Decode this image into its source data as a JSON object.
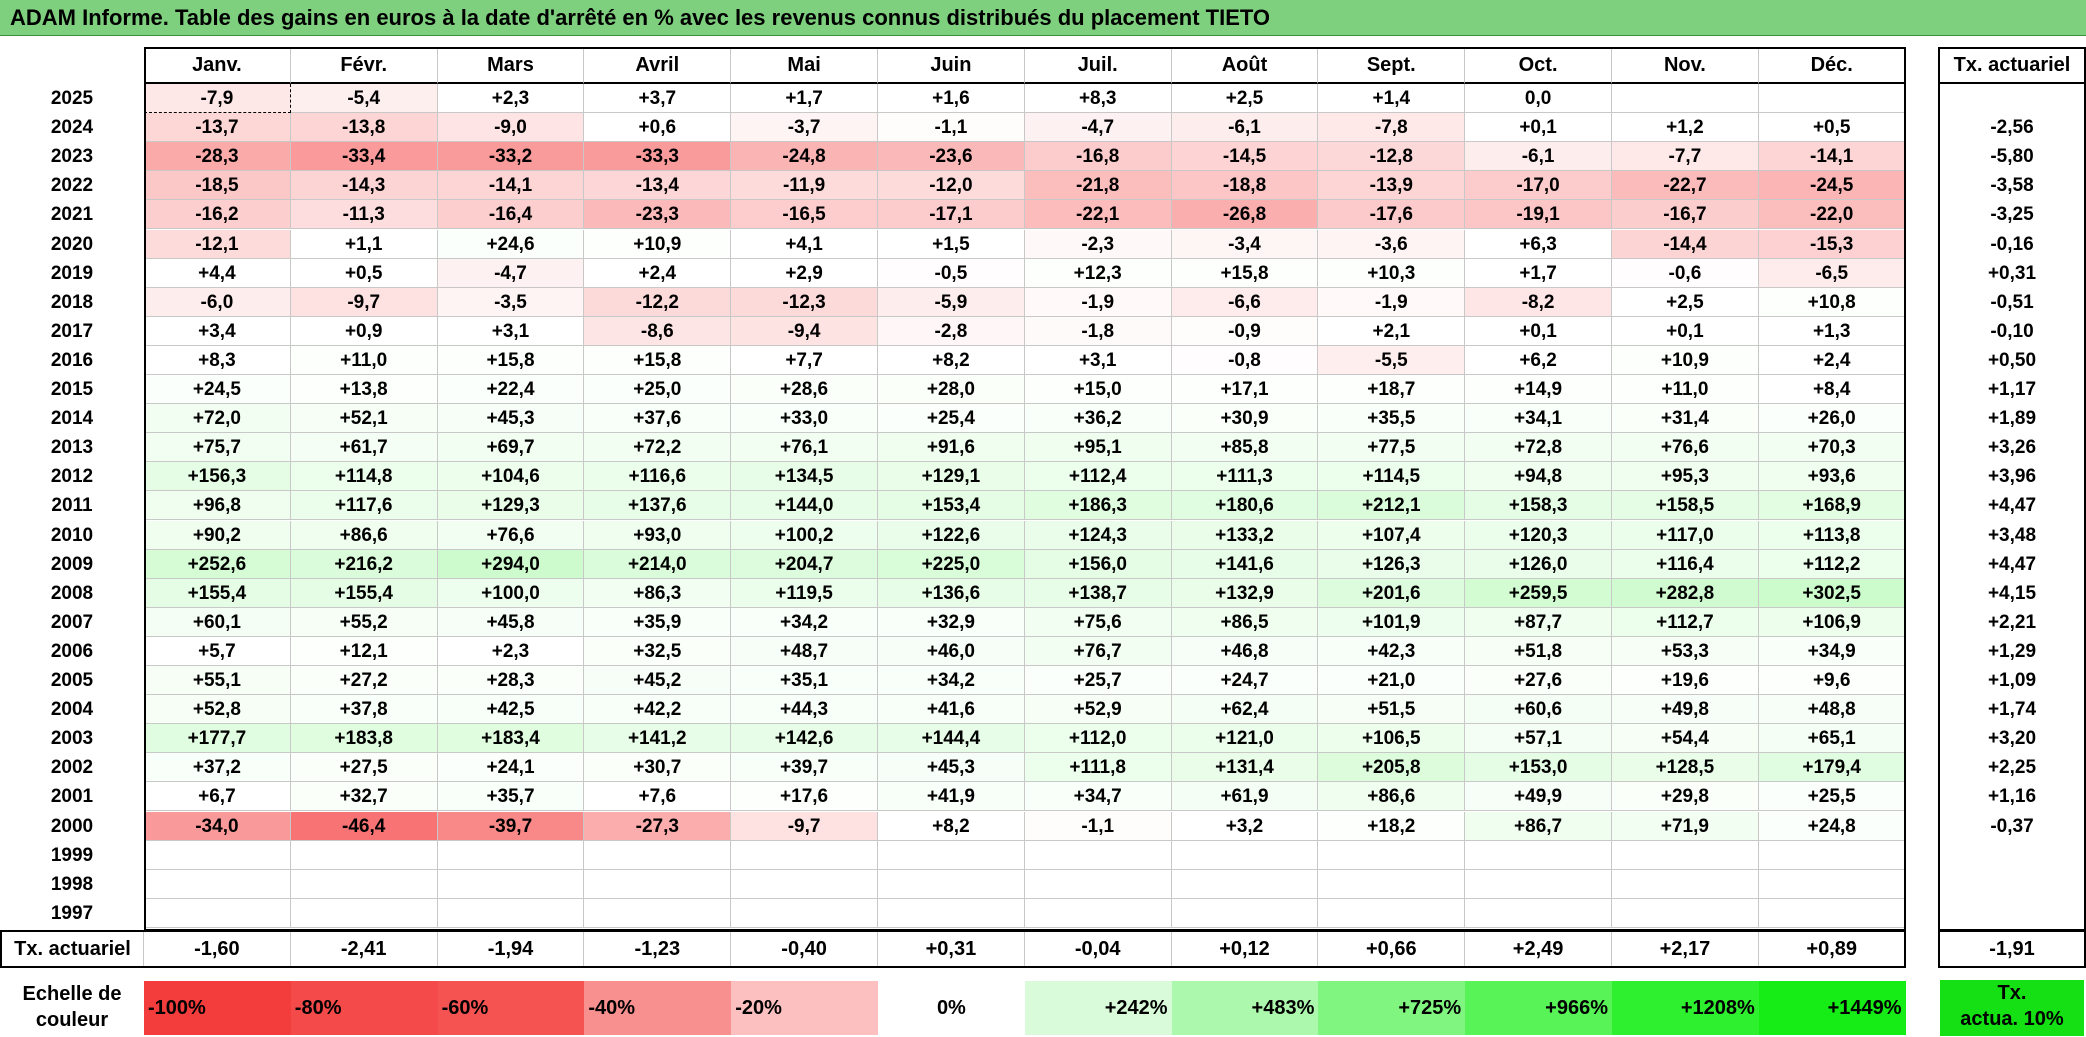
{
  "title": "ADAM Informe. Table des gains en euros à la date d'arrêté en % avec les revenus connus distribués du placement TIETO",
  "months": [
    "Janv.",
    "Févr.",
    "Mars",
    "Avril",
    "Mai",
    "Juin",
    "Juil.",
    "Août",
    "Sept.",
    "Oct.",
    "Nov.",
    "Déc."
  ],
  "tx_header": "Tx. actuariel",
  "rows": [
    {
      "year": "2025",
      "values": [
        "-7,9",
        "-5,4",
        "+2,3",
        "+3,7",
        "+1,7",
        "+1,6",
        "+8,3",
        "+2,5",
        "+1,4",
        "0,0",
        "",
        ""
      ],
      "tx": ""
    },
    {
      "year": "2024",
      "values": [
        "-13,7",
        "-13,8",
        "-9,0",
        "+0,6",
        "-3,7",
        "-1,1",
        "-4,7",
        "-6,1",
        "-7,8",
        "+0,1",
        "+1,2",
        "+0,5"
      ],
      "tx": "-2,56"
    },
    {
      "year": "2023",
      "values": [
        "-28,3",
        "-33,4",
        "-33,2",
        "-33,3",
        "-24,8",
        "-23,6",
        "-16,8",
        "-14,5",
        "-12,8",
        "-6,1",
        "-7,7",
        "-14,1"
      ],
      "tx": "-5,80"
    },
    {
      "year": "2022",
      "values": [
        "-18,5",
        "-14,3",
        "-14,1",
        "-13,4",
        "-11,9",
        "-12,0",
        "-21,8",
        "-18,8",
        "-13,9",
        "-17,0",
        "-22,7",
        "-24,5"
      ],
      "tx": "-3,58"
    },
    {
      "year": "2021",
      "values": [
        "-16,2",
        "-11,3",
        "-16,4",
        "-23,3",
        "-16,5",
        "-17,1",
        "-22,1",
        "-26,8",
        "-17,6",
        "-19,1",
        "-16,7",
        "-22,0"
      ],
      "tx": "-3,25"
    },
    {
      "year": "2020",
      "values": [
        "-12,1",
        "+1,1",
        "+24,6",
        "+10,9",
        "+4,1",
        "+1,5",
        "-2,3",
        "-3,4",
        "-3,6",
        "+6,3",
        "-14,4",
        "-15,3"
      ],
      "tx": "-0,16"
    },
    {
      "year": "2019",
      "values": [
        "+4,4",
        "+0,5",
        "-4,7",
        "+2,4",
        "+2,9",
        "-0,5",
        "+12,3",
        "+15,8",
        "+10,3",
        "+1,7",
        "-0,6",
        "-6,5"
      ],
      "tx": "+0,31"
    },
    {
      "year": "2018",
      "values": [
        "-6,0",
        "-9,7",
        "-3,5",
        "-12,2",
        "-12,3",
        "-5,9",
        "-1,9",
        "-6,6",
        "-1,9",
        "-8,2",
        "+2,5",
        "+10,8"
      ],
      "tx": "-0,51"
    },
    {
      "year": "2017",
      "values": [
        "+3,4",
        "+0,9",
        "+3,1",
        "-8,6",
        "-9,4",
        "-2,8",
        "-1,8",
        "-0,9",
        "+2,1",
        "+0,1",
        "+0,1",
        "+1,3"
      ],
      "tx": "-0,10"
    },
    {
      "year": "2016",
      "values": [
        "+8,3",
        "+11,0",
        "+15,8",
        "+15,8",
        "+7,7",
        "+8,2",
        "+3,1",
        "-0,8",
        "-5,5",
        "+6,2",
        "+10,9",
        "+2,4"
      ],
      "tx": "+0,50"
    },
    {
      "year": "2015",
      "values": [
        "+24,5",
        "+13,8",
        "+22,4",
        "+25,0",
        "+28,6",
        "+28,0",
        "+15,0",
        "+17,1",
        "+18,7",
        "+14,9",
        "+11,0",
        "+8,4"
      ],
      "tx": "+1,17"
    },
    {
      "year": "2014",
      "values": [
        "+72,0",
        "+52,1",
        "+45,3",
        "+37,6",
        "+33,0",
        "+25,4",
        "+36,2",
        "+30,9",
        "+35,5",
        "+34,1",
        "+31,4",
        "+26,0"
      ],
      "tx": "+1,89"
    },
    {
      "year": "2013",
      "values": [
        "+75,7",
        "+61,7",
        "+69,7",
        "+72,2",
        "+76,1",
        "+91,6",
        "+95,1",
        "+85,8",
        "+77,5",
        "+72,8",
        "+76,6",
        "+70,3"
      ],
      "tx": "+3,26"
    },
    {
      "year": "2012",
      "values": [
        "+156,3",
        "+114,8",
        "+104,6",
        "+116,6",
        "+134,5",
        "+129,1",
        "+112,4",
        "+111,3",
        "+114,5",
        "+94,8",
        "+95,3",
        "+93,6"
      ],
      "tx": "+3,96"
    },
    {
      "year": "2011",
      "values": [
        "+96,8",
        "+117,6",
        "+129,3",
        "+137,6",
        "+144,0",
        "+153,4",
        "+186,3",
        "+180,6",
        "+212,1",
        "+158,3",
        "+158,5",
        "+168,9"
      ],
      "tx": "+4,47"
    },
    {
      "year": "2010",
      "values": [
        "+90,2",
        "+86,6",
        "+76,6",
        "+93,0",
        "+100,2",
        "+122,6",
        "+124,3",
        "+133,2",
        "+107,4",
        "+120,3",
        "+117,0",
        "+113,8"
      ],
      "tx": "+3,48"
    },
    {
      "year": "2009",
      "values": [
        "+252,6",
        "+216,2",
        "+294,0",
        "+214,0",
        "+204,7",
        "+225,0",
        "+156,0",
        "+141,6",
        "+126,3",
        "+126,0",
        "+116,4",
        "+112,2"
      ],
      "tx": "+4,47"
    },
    {
      "year": "2008",
      "values": [
        "+155,4",
        "+155,4",
        "+100,0",
        "+86,3",
        "+119,5",
        "+136,6",
        "+138,7",
        "+132,9",
        "+201,6",
        "+259,5",
        "+282,8",
        "+302,5"
      ],
      "tx": "+4,15"
    },
    {
      "year": "2007",
      "values": [
        "+60,1",
        "+55,2",
        "+45,8",
        "+35,9",
        "+34,2",
        "+32,9",
        "+75,6",
        "+86,5",
        "+101,9",
        "+87,7",
        "+112,7",
        "+106,9"
      ],
      "tx": "+2,21"
    },
    {
      "year": "2006",
      "values": [
        "+5,7",
        "+12,1",
        "+2,3",
        "+32,5",
        "+48,7",
        "+46,0",
        "+76,7",
        "+46,8",
        "+42,3",
        "+51,8",
        "+53,3",
        "+34,9"
      ],
      "tx": "+1,29"
    },
    {
      "year": "2005",
      "values": [
        "+55,1",
        "+27,2",
        "+28,3",
        "+45,2",
        "+35,1",
        "+34,2",
        "+25,7",
        "+24,7",
        "+21,0",
        "+27,6",
        "+19,6",
        "+9,6"
      ],
      "tx": "+1,09"
    },
    {
      "year": "2004",
      "values": [
        "+52,8",
        "+37,8",
        "+42,5",
        "+42,2",
        "+44,3",
        "+41,6",
        "+52,9",
        "+62,4",
        "+51,5",
        "+60,6",
        "+49,8",
        "+48,8"
      ],
      "tx": "+1,74"
    },
    {
      "year": "2003",
      "values": [
        "+177,7",
        "+183,8",
        "+183,4",
        "+141,2",
        "+142,6",
        "+144,4",
        "+112,0",
        "+121,0",
        "+106,5",
        "+57,1",
        "+54,4",
        "+65,1"
      ],
      "tx": "+3,20"
    },
    {
      "year": "2002",
      "values": [
        "+37,2",
        "+27,5",
        "+24,1",
        "+30,7",
        "+39,7",
        "+45,3",
        "+111,8",
        "+131,4",
        "+205,8",
        "+153,0",
        "+128,5",
        "+179,4"
      ],
      "tx": "+2,25"
    },
    {
      "year": "2001",
      "values": [
        "+6,7",
        "+32,7",
        "+35,7",
        "+7,6",
        "+17,6",
        "+41,9",
        "+34,7",
        "+61,9",
        "+86,6",
        "+49,9",
        "+29,8",
        "+25,5"
      ],
      "tx": "+1,16"
    },
    {
      "year": "2000",
      "values": [
        "-34,0",
        "-46,4",
        "-39,7",
        "-27,3",
        "-9,7",
        "+8,2",
        "-1,1",
        "+3,2",
        "+18,2",
        "+86,7",
        "+71,9",
        "+24,8"
      ],
      "tx": "-0,37"
    },
    {
      "year": "1999",
      "values": [
        "",
        "",
        "",
        "",
        "",
        "",
        "",
        "",
        "",
        "",
        "",
        ""
      ],
      "tx": ""
    },
    {
      "year": "1998",
      "values": [
        "",
        "",
        "",
        "",
        "",
        "",
        "",
        "",
        "",
        "",
        "",
        ""
      ],
      "tx": ""
    },
    {
      "year": "1997",
      "values": [
        "",
        "",
        "",
        "",
        "",
        "",
        "",
        "",
        "",
        "",
        "",
        ""
      ],
      "tx": ""
    }
  ],
  "summary": {
    "label": "Tx. actuariel",
    "values": [
      "-1,60",
      "-2,41",
      "-1,94",
      "-1,23",
      "-0,40",
      "+0,31",
      "-0,04",
      "+0,12",
      "+0,66",
      "+2,49",
      "+2,17",
      "+0,89"
    ],
    "tx": "-1,91"
  },
  "legend": {
    "label_line1": "Echelle de",
    "label_line2": "couleur",
    "items": [
      {
        "text": "-100%",
        "color": "#f33c3c",
        "align": "left"
      },
      {
        "text": "-80%",
        "color": "#f44a4a",
        "align": "left"
      },
      {
        "text": "-60%",
        "color": "#f55252",
        "align": "left"
      },
      {
        "text": "-40%",
        "color": "#f99090",
        "align": "left"
      },
      {
        "text": "-20%",
        "color": "#fdc0c0",
        "align": "left"
      },
      {
        "text": "0%",
        "color": "#ffffff",
        "align": "center"
      },
      {
        "text": "+242%",
        "color": "#d9fbd9",
        "align": "right"
      },
      {
        "text": "+483%",
        "color": "#acf8ac",
        "align": "right"
      },
      {
        "text": "+725%",
        "color": "#80f680",
        "align": "right"
      },
      {
        "text": "+966%",
        "color": "#57f357",
        "align": "right"
      },
      {
        "text": "+1208%",
        "color": "#2ef02e",
        "align": "right"
      },
      {
        "text": "+1449%",
        "color": "#16ec16",
        "align": "right"
      }
    ],
    "tx_line1": "Tx.",
    "tx_line2": "actua. 10%",
    "tx_color": "#14e014"
  }
}
